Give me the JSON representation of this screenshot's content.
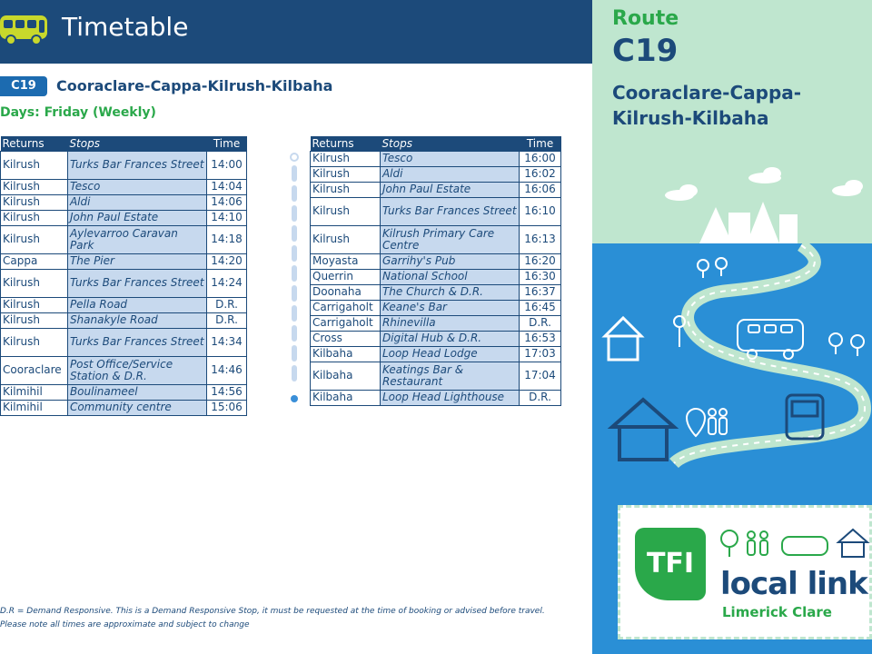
{
  "header": {
    "title": "Timetable",
    "colors": {
      "primary": "#1c4a7a",
      "accent": "#2aa84a",
      "highlight": "#c7d9ee"
    }
  },
  "route": {
    "code": "C19",
    "name": "Cooraclare-Cappa-Kilrush-Kilbaha",
    "days": "Days: Friday (Weekly)"
  },
  "table_left": {
    "headers": [
      "Returns",
      "Stops",
      "Time"
    ],
    "rows": [
      [
        "Kilrush",
        "Turks Bar Frances Street",
        "14:00"
      ],
      [
        "Kilrush",
        "Tesco",
        "14:04"
      ],
      [
        "Kilrush",
        "Aldi",
        "14:06"
      ],
      [
        "Kilrush",
        "John Paul Estate",
        "14:10"
      ],
      [
        "Kilrush",
        "Aylevarroo Caravan Park",
        "14:18"
      ],
      [
        "Cappa",
        "The Pier",
        "14:20"
      ],
      [
        "Kilrush",
        "Turks Bar Frances Street",
        "14:24"
      ],
      [
        "Kilrush",
        "Pella Road",
        "D.R."
      ],
      [
        "Kilrush",
        "Shanakyle Road",
        "D.R."
      ],
      [
        "Kilrush",
        "Turks Bar Frances Street",
        "14:34"
      ],
      [
        "Cooraclare",
        "Post Office/Service Station & D.R.",
        "14:46"
      ],
      [
        "Kilmihil",
        "Boulinameel",
        "14:56"
      ],
      [
        "Kilmihil",
        "Community centre",
        "15:06"
      ]
    ]
  },
  "table_right": {
    "headers": [
      "Returns",
      "Stops",
      "Time"
    ],
    "rows": [
      [
        "Kilrush",
        "Tesco",
        "16:00"
      ],
      [
        "Kilrush",
        "Aldi",
        "16:02"
      ],
      [
        "Kilrush",
        "John Paul Estate",
        "16:06"
      ],
      [
        "Kilrush",
        "Turks Bar Frances Street",
        "16:10"
      ],
      [
        "Kilrush",
        "Kilrush Primary Care Centre",
        "16:13"
      ],
      [
        "Moyasta",
        "Garrihy's Pub",
        "16:20"
      ],
      [
        "Querrin",
        "National School",
        "16:30"
      ],
      [
        "Doonaha",
        "The Church & D.R.",
        "16:37"
      ],
      [
        "Carrigaholt",
        "Keane's Bar",
        "16:45"
      ],
      [
        "Carrigaholt",
        "Rhinevilla",
        "D.R."
      ],
      [
        "Cross",
        "Digital Hub & D.R.",
        "16:53"
      ],
      [
        "Kilbaha",
        "Loop Head Lodge",
        "17:03"
      ],
      [
        "Kilbaha",
        "Keatings Bar & Restaurant",
        "17:04"
      ],
      [
        "Kilbaha",
        "Loop Head Lighthouse",
        "D.R."
      ]
    ]
  },
  "footnotes": {
    "line1": "D.R = Demand Responsive. This is a Demand Responsive Stop, it must be requested at the time of booking or advised before travel.",
    "line2": "Please note all times are approximate and subject to change"
  },
  "side": {
    "route_label": "Route",
    "route_code": "C19",
    "route_name": "Cooraclare-Cappa-Kilrush-Kilbaha",
    "brand": {
      "tfi": "TFI",
      "name": "local link",
      "region": "Limerick Clare"
    }
  }
}
